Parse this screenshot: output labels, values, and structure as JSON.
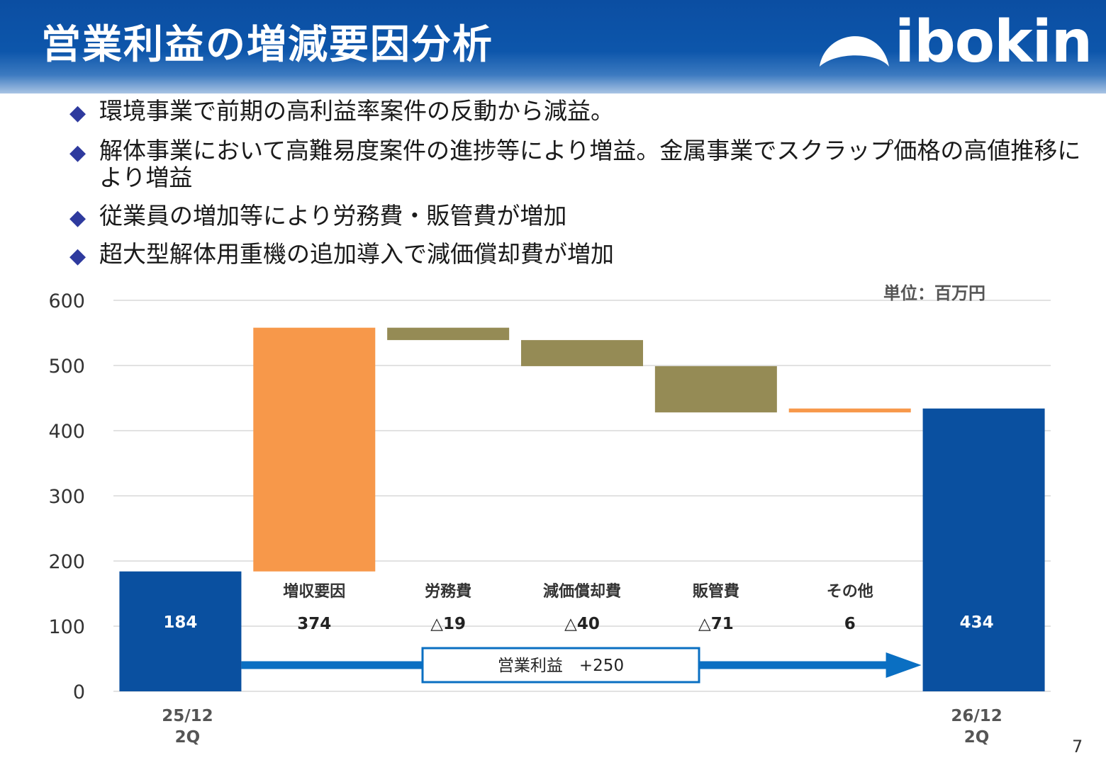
{
  "header": {
    "title": "営業利益の増減要因分析",
    "logo_text": "ibokin"
  },
  "bullets": [
    "環境事業で前期の高利益率案件の反動から減益。",
    "解体事業において高難易度案件の進捗等により増益。金属事業でスクラップ価格の高値推移により増益",
    "従業員の増加等により労務費・販管費が増加",
    "超大型解体用重機の追加導入で減価償却費が増加"
  ],
  "chart_data": {
    "type": "waterfall",
    "unit_label": "単位：百万円",
    "ylim": [
      0,
      600
    ],
    "y_ticks": [
      "0",
      "100",
      "200",
      "300",
      "400",
      "500",
      "600"
    ],
    "grid": true,
    "start": {
      "label": [
        "25/12",
        "2Q"
      ],
      "value": 184,
      "value_label": "184"
    },
    "end": {
      "label": [
        "26/12",
        "2Q"
      ],
      "value": 434,
      "value_label": "434"
    },
    "steps": [
      {
        "name": "増収要因",
        "delta": 374,
        "value_label": "374"
      },
      {
        "name": "労務費",
        "delta": -19,
        "value_label": "△19"
      },
      {
        "name": "減価償却費",
        "delta": -40,
        "value_label": "△40"
      },
      {
        "name": "販管費",
        "delta": -71,
        "value_label": "△71"
      },
      {
        "name": "その他",
        "delta": 6,
        "value_label": "6"
      }
    ],
    "annotation": "営業利益　+250",
    "colors": {
      "total": "#0a50a0",
      "increase": "#f7984a",
      "decrease": "#958b55",
      "arrow": "#0a6fc2",
      "grid": "#d9d9d9"
    }
  },
  "page_number": "7"
}
